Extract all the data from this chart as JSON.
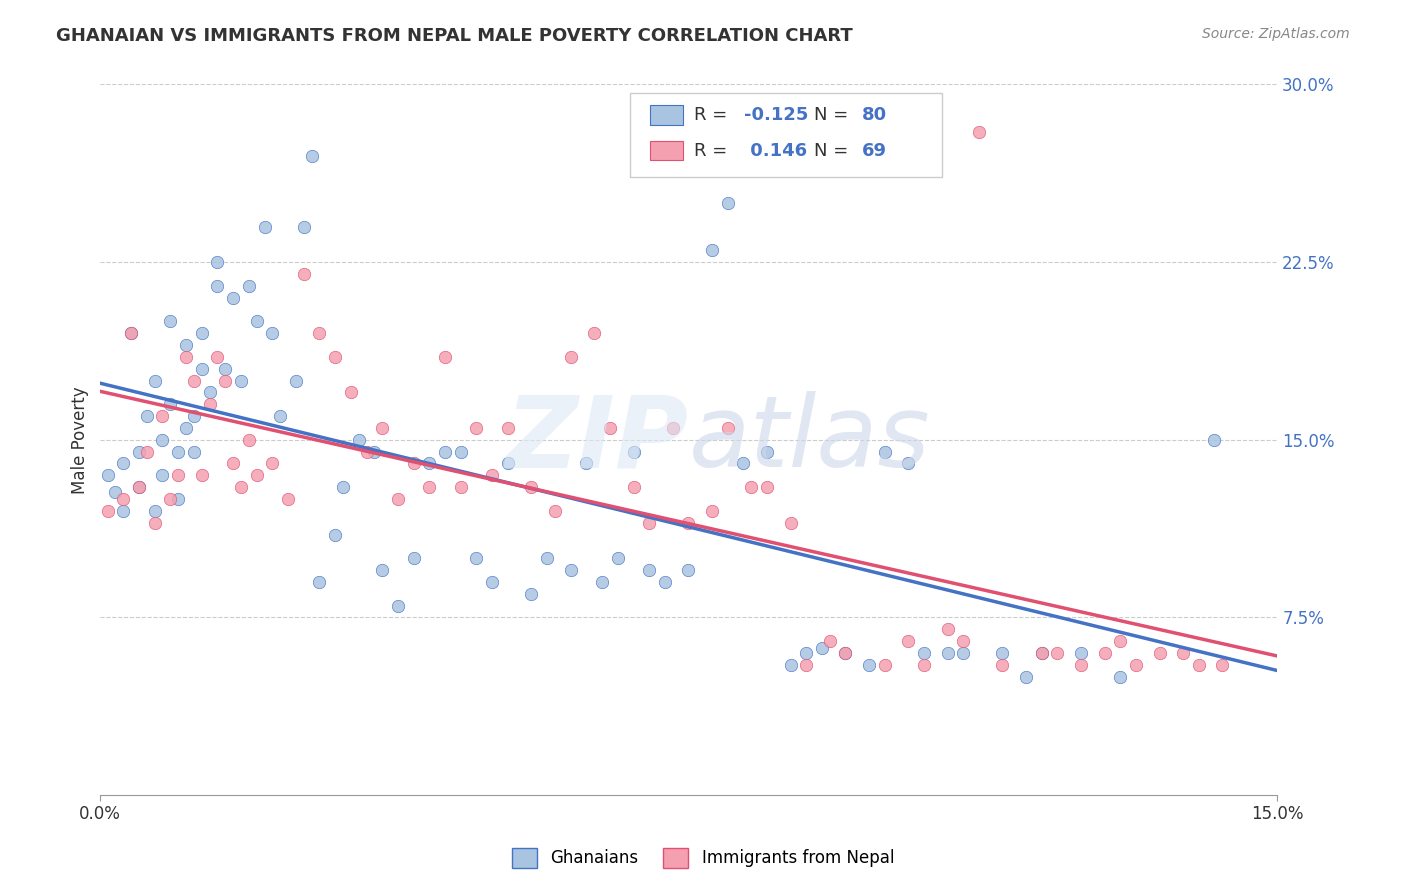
{
  "title": "GHANAIAN VS IMMIGRANTS FROM NEPAL MALE POVERTY CORRELATION CHART",
  "source": "Source: ZipAtlas.com",
  "ylabel": "Male Poverty",
  "ytick_labels": [
    "7.5%",
    "15.0%",
    "22.5%",
    "30.0%"
  ],
  "ytick_values": [
    0.075,
    0.15,
    0.225,
    0.3
  ],
  "xlim": [
    0.0,
    0.15
  ],
  "ylim": [
    0.0,
    0.3
  ],
  "ghanaian_color": "#a8c4e0",
  "nepal_color": "#f4a0b0",
  "ghanaian_line_color": "#4472c4",
  "nepal_line_color": "#e05070",
  "ghanaian_R": -0.125,
  "ghanaian_N": 80,
  "nepal_R": 0.146,
  "nepal_N": 69,
  "ghanaian_x": [
    0.001,
    0.002,
    0.003,
    0.003,
    0.004,
    0.005,
    0.005,
    0.006,
    0.007,
    0.007,
    0.008,
    0.008,
    0.009,
    0.009,
    0.01,
    0.01,
    0.011,
    0.011,
    0.012,
    0.012,
    0.013,
    0.013,
    0.014,
    0.015,
    0.015,
    0.016,
    0.017,
    0.018,
    0.019,
    0.02,
    0.021,
    0.022,
    0.023,
    0.025,
    0.026,
    0.027,
    0.028,
    0.03,
    0.031,
    0.033,
    0.035,
    0.036,
    0.038,
    0.04,
    0.042,
    0.044,
    0.046,
    0.048,
    0.05,
    0.052,
    0.055,
    0.057,
    0.06,
    0.062,
    0.064,
    0.066,
    0.068,
    0.07,
    0.072,
    0.075,
    0.078,
    0.08,
    0.082,
    0.085,
    0.088,
    0.09,
    0.092,
    0.095,
    0.098,
    0.1,
    0.103,
    0.105,
    0.108,
    0.11,
    0.115,
    0.118,
    0.12,
    0.125,
    0.13,
    0.142
  ],
  "ghanaian_y": [
    0.135,
    0.128,
    0.14,
    0.12,
    0.195,
    0.13,
    0.145,
    0.16,
    0.175,
    0.12,
    0.15,
    0.135,
    0.2,
    0.165,
    0.145,
    0.125,
    0.19,
    0.155,
    0.145,
    0.16,
    0.18,
    0.195,
    0.17,
    0.225,
    0.215,
    0.18,
    0.21,
    0.175,
    0.215,
    0.2,
    0.24,
    0.195,
    0.16,
    0.175,
    0.24,
    0.27,
    0.09,
    0.11,
    0.13,
    0.15,
    0.145,
    0.095,
    0.08,
    0.1,
    0.14,
    0.145,
    0.145,
    0.1,
    0.09,
    0.14,
    0.085,
    0.1,
    0.095,
    0.14,
    0.09,
    0.1,
    0.145,
    0.095,
    0.09,
    0.095,
    0.23,
    0.25,
    0.14,
    0.145,
    0.055,
    0.06,
    0.062,
    0.06,
    0.055,
    0.145,
    0.14,
    0.06,
    0.06,
    0.06,
    0.06,
    0.05,
    0.06,
    0.06,
    0.05,
    0.15
  ],
  "nepal_x": [
    0.001,
    0.003,
    0.004,
    0.005,
    0.006,
    0.007,
    0.008,
    0.009,
    0.01,
    0.011,
    0.012,
    0.013,
    0.014,
    0.015,
    0.016,
    0.017,
    0.018,
    0.019,
    0.02,
    0.022,
    0.024,
    0.026,
    0.028,
    0.03,
    0.032,
    0.034,
    0.036,
    0.038,
    0.04,
    0.042,
    0.044,
    0.046,
    0.048,
    0.05,
    0.052,
    0.055,
    0.058,
    0.06,
    0.063,
    0.065,
    0.068,
    0.07,
    0.073,
    0.075,
    0.078,
    0.08,
    0.083,
    0.085,
    0.088,
    0.09,
    0.093,
    0.095,
    0.1,
    0.103,
    0.105,
    0.108,
    0.11,
    0.112,
    0.115,
    0.12,
    0.122,
    0.125,
    0.128,
    0.13,
    0.132,
    0.135,
    0.138,
    0.14,
    0.143
  ],
  "nepal_y": [
    0.12,
    0.125,
    0.195,
    0.13,
    0.145,
    0.115,
    0.16,
    0.125,
    0.135,
    0.185,
    0.175,
    0.135,
    0.165,
    0.185,
    0.175,
    0.14,
    0.13,
    0.15,
    0.135,
    0.14,
    0.125,
    0.22,
    0.195,
    0.185,
    0.17,
    0.145,
    0.155,
    0.125,
    0.14,
    0.13,
    0.185,
    0.13,
    0.155,
    0.135,
    0.155,
    0.13,
    0.12,
    0.185,
    0.195,
    0.155,
    0.13,
    0.115,
    0.155,
    0.115,
    0.12,
    0.155,
    0.13,
    0.13,
    0.115,
    0.055,
    0.065,
    0.06,
    0.055,
    0.065,
    0.055,
    0.07,
    0.065,
    0.28,
    0.055,
    0.06,
    0.06,
    0.055,
    0.06,
    0.065,
    0.055,
    0.06,
    0.06,
    0.055,
    0.055
  ]
}
